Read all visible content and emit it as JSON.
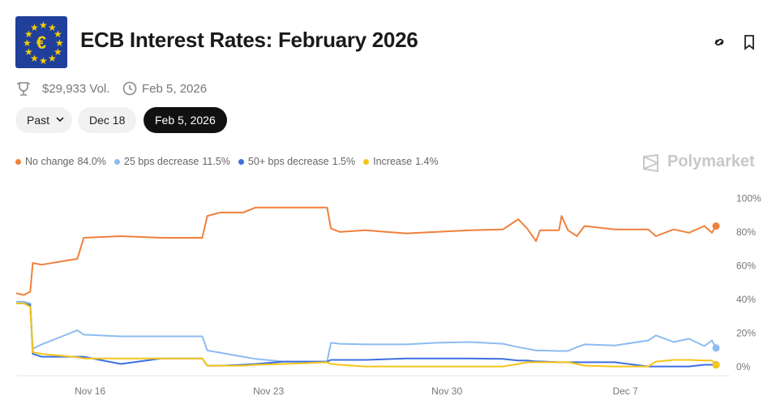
{
  "header": {
    "title": "ECB Interest Rates: February 2026",
    "volume": "$29,933 Vol.",
    "end_date": "Feb 5, 2026"
  },
  "tabs": [
    "Past",
    "Dec 18",
    "Feb 5, 2026"
  ],
  "brand": "Polymarket",
  "chart_data": {
    "type": "line",
    "x": [
      13.1,
      13.4,
      13.65,
      13.75,
      14.1,
      15.5,
      15.75,
      17.2,
      18.8,
      20.4,
      20.6,
      21.1,
      22.0,
      22.5,
      23.6,
      25.3,
      25.45,
      25.8,
      26.8,
      28.4,
      29.6,
      30.9,
      32.2,
      32.8,
      33.15,
      33.5,
      33.65,
      34.4,
      34.5,
      34.75,
      35.1,
      35.4,
      36.6,
      37.9,
      38.2,
      38.9,
      39.5,
      40.1,
      40.4,
      40.56
    ],
    "xlim": [
      13.1,
      41.1
    ],
    "xticks": [
      {
        "value": 16,
        "label": "Nov 16"
      },
      {
        "value": 23,
        "label": "Nov 23"
      },
      {
        "value": 30,
        "label": "Nov 30"
      },
      {
        "value": 37,
        "label": "Dec 7"
      }
    ],
    "ylim": [
      -5,
      105
    ],
    "yticks": [
      {
        "value": 0,
        "label": "0%"
      },
      {
        "value": 20,
        "label": "20%"
      },
      {
        "value": 40,
        "label": "40%"
      },
      {
        "value": 60,
        "label": "60%"
      },
      {
        "value": 80,
        "label": "80%"
      },
      {
        "value": 100,
        "label": "100%"
      }
    ],
    "grid": false,
    "series": [
      {
        "name": "No change",
        "current_label": "84.0%",
        "color": "#f0803c",
        "values": [
          44,
          43,
          45,
          62,
          61,
          64.5,
          77,
          78,
          77,
          77,
          90,
          92,
          92,
          95,
          95,
          95,
          82.5,
          80.5,
          81.5,
          79.6,
          80.5,
          81.5,
          82,
          88,
          82.5,
          75,
          81.5,
          81.5,
          90,
          81.5,
          78,
          84,
          82,
          82,
          78,
          82,
          80,
          84,
          80,
          84
        ]
      },
      {
        "name": "25 bps decrease",
        "current_label": "11.5%",
        "color": "#8cbcf0",
        "values": [
          39,
          39,
          38,
          11,
          13.6,
          22,
          19.4,
          18.4,
          18.4,
          18.4,
          10,
          8.7,
          6.3,
          5,
          3.4,
          3.4,
          14.6,
          14,
          13.6,
          13.6,
          14.6,
          15,
          14,
          12,
          11,
          10,
          10,
          9.7,
          9.7,
          9.7,
          12,
          13.6,
          13,
          16,
          19,
          15,
          17,
          12.6,
          16,
          11.5
        ]
      },
      {
        "name": "50+ bps decrease",
        "current_label": "1.5%",
        "color": "#3f6fe0",
        "values": [
          38,
          38,
          37,
          8,
          6.3,
          6.3,
          6.3,
          2,
          5.3,
          5.3,
          1,
          1,
          1.5,
          2,
          3.4,
          3.4,
          4.4,
          4.4,
          4.4,
          5.3,
          5.3,
          5.3,
          5,
          4,
          4,
          3.5,
          3.5,
          3,
          3,
          3,
          3,
          3,
          3,
          0.5,
          0.5,
          0.5,
          0.5,
          1.5,
          1.5,
          1.5
        ]
      },
      {
        "name": "Increase",
        "current_label": "1.4%",
        "color": "#f5c518",
        "values": [
          38,
          38,
          36,
          9,
          8,
          6,
          5.3,
          5.3,
          5.3,
          5.3,
          1,
          1,
          1,
          1.5,
          2,
          3,
          2,
          1.5,
          0.5,
          0.5,
          0.5,
          0.5,
          0.5,
          2,
          3,
          3,
          3,
          3,
          3,
          3,
          2,
          1,
          0.5,
          0.5,
          3.4,
          4.4,
          4.4,
          4,
          4,
          1.4
        ]
      }
    ]
  }
}
